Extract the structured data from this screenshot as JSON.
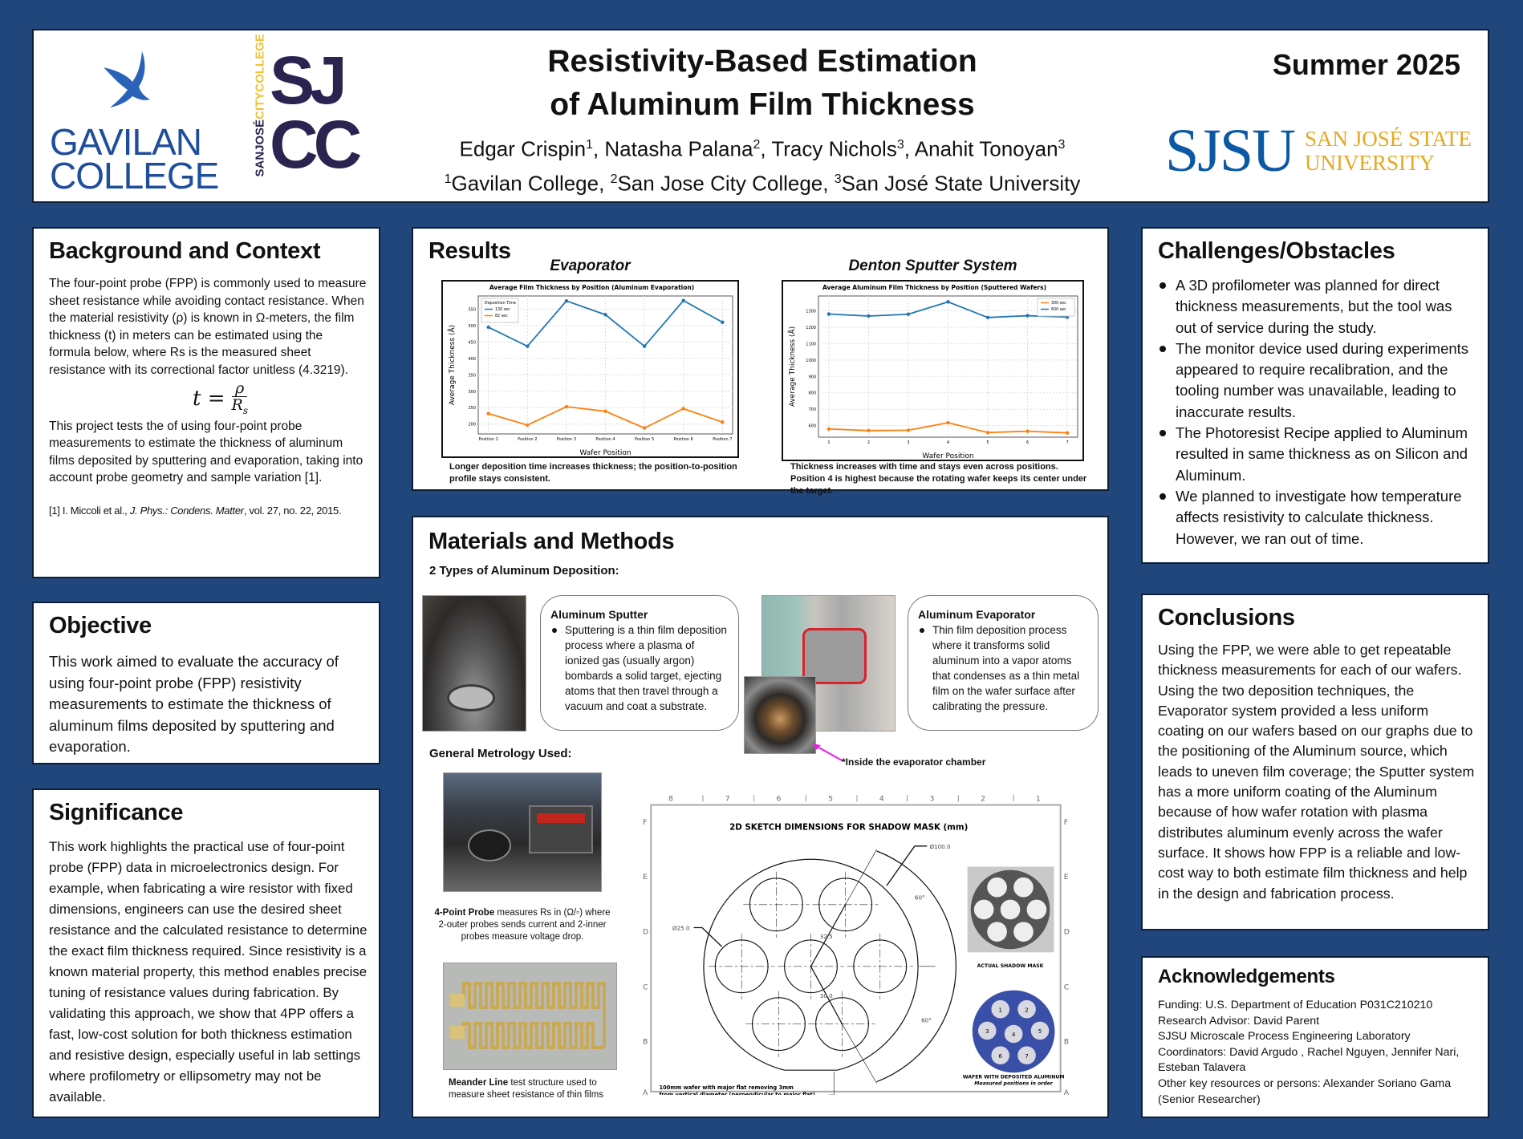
{
  "header": {
    "title_line1": "Resistivity-Based Estimation",
    "title_line2": "of Aluminum Film Thickness",
    "authors": [
      {
        "name": "Edgar Crispin",
        "sup": "1"
      },
      {
        "name": "Natasha Palana",
        "sup": "2"
      },
      {
        "name": "Tracy Nichols",
        "sup": "3"
      },
      {
        "name": "Anahit Tonoyan",
        "sup": "3"
      }
    ],
    "affiliations": [
      {
        "sup": "1",
        "name": "Gavilan College"
      },
      {
        "sup": "2",
        "name": "San Jose City College"
      },
      {
        "sup": "3",
        "name": "San José State University"
      }
    ],
    "date": "Summer 2025",
    "logos": {
      "gavilan_line1": "GAVILAN",
      "gavilan_line2": "COLLEGE",
      "sjcc_side1": "SANJOSÉ",
      "sjcc_side2": "CITYCOLLEGE",
      "sjcc_big1": "SJ",
      "sjcc_big2": "CC",
      "sjsu_mark": "SJSU",
      "sjsu_line1": "SAN JOSÉ STATE",
      "sjsu_line2": "UNIVERSITY"
    },
    "colors": {
      "background": "#21467b",
      "gavilan_blue": "#1f4e9c",
      "sjcc_purple": "#2b2350",
      "sjcc_gold": "#f2c230",
      "sjsu_blue": "#0b59a5",
      "sjsu_gold": "#e6a823"
    }
  },
  "background": {
    "heading": "Background and Context",
    "para1": "The four-point probe (FPP) is commonly used to measure sheet resistance while avoiding contact resistance. When the material resistivity (ρ) is known in Ω-meters, the film thickness (t) in meters can be estimated using the formula below, where Rs is the measured sheet resistance with its correctional factor unitless (4.3219).",
    "formula_lhs": "t =",
    "formula_num": "ρ",
    "formula_den": "R",
    "formula_den_sub": "s",
    "para2": "This project tests the of using four-point probe measurements to estimate the thickness of aluminum films deposited by sputtering and evaporation, taking into account probe geometry and sample variation [1].",
    "ref_prefix": "[1] I. Miccoli et al., ",
    "ref_journal": "J. Phys.: Condens. Matter",
    "ref_suffix": ", vol. 27, no. 22, 2015."
  },
  "objective": {
    "heading": "Objective",
    "text": "This work aimed to evaluate the accuracy of using four-point probe (FPP) resistivity measurements to estimate the thickness of aluminum films deposited by sputtering and evaporation."
  },
  "significance": {
    "heading": "Significance",
    "text": "This work highlights the practical use of four-point probe (FPP) data in microelectronics design. For example, when fabricating a wire resistor with fixed dimensions, engineers can use the desired sheet resistance and the calculated resistance to determine the exact film thickness required. Since resistivity is a known material property, this method enables precise tuning of resistance values during fabrication. By validating this approach, we show that 4PP offers a fast, low-cost solution for both thickness estimation and resistive design, especially useful in lab settings where profilometry or ellipsometry may not be available."
  },
  "results": {
    "heading": "Results",
    "evap_title": "Evaporator",
    "sputter_title": "Denton Sputter System",
    "evap_caption": "Longer deposition time increases thickness; the position-to-position profile stays consistent.",
    "sputter_caption": "Thickness increases with time and stays even across positions. Position 4 is highest because the rotating wafer keeps its center under the target."
  },
  "chart_data": [
    {
      "type": "line",
      "title": "Average Film Thickness by Position (Aluminum Evaporation)",
      "xlabel": "Wafer Position",
      "ylabel": "Average Thickness (Å)",
      "categories": [
        "Position 1",
        "Position 2",
        "Position 3",
        "Position 4",
        "Position 5",
        "Position 6",
        "Position 7"
      ],
      "ylim": [
        170,
        590
      ],
      "yticks": [
        200,
        250,
        300,
        350,
        400,
        450,
        500,
        550
      ],
      "grid": true,
      "legend_title": "Deposition Time",
      "legend_placement": "top-left",
      "series": [
        {
          "name": "130 sec",
          "color": "#1f77b4",
          "values": [
            495,
            437,
            575,
            533,
            437,
            576,
            510
          ]
        },
        {
          "name": "82 sec",
          "color": "#ff7f0e",
          "values": [
            232,
            197,
            253,
            239,
            188,
            247,
            206
          ]
        }
      ]
    },
    {
      "type": "line",
      "title": "Average Aluminum Film Thickness by Position (Sputtered Wafers)",
      "xlabel": "Wafer Position",
      "ylabel": "Average Thickness (Å)",
      "categories": [
        "1",
        "2",
        "3",
        "4",
        "5",
        "6",
        "7"
      ],
      "ylim": [
        530,
        1390
      ],
      "yticks": [
        600,
        700,
        800,
        900,
        1000,
        1100,
        1200,
        1300
      ],
      "grid": true,
      "legend_title": "",
      "legend_placement": "top-right",
      "series": [
        {
          "name": "300 sec",
          "color": "#ff7f0e",
          "values": [
            580,
            570,
            572,
            618,
            558,
            566,
            556
          ]
        },
        {
          "name": "600 sec",
          "color": "#1f77b4",
          "values": [
            1280,
            1268,
            1279,
            1354,
            1259,
            1270,
            1261
          ]
        }
      ]
    }
  ],
  "materials": {
    "heading": "Materials and Methods",
    "deposition_heading": "2 Types of Aluminum Deposition:",
    "sputter": {
      "title": "Aluminum Sputter",
      "text": "Sputtering is a thin film deposition process where a plasma of ionized gas (usually argon) bombards a solid target, ejecting atoms that then travel through a vacuum and coat a substrate."
    },
    "evaporator": {
      "title": "Aluminum Evaporator",
      "text": "Thin film deposition process where it transforms solid aluminum into a vapor atoms that condenses as a thin metal film on the wafer surface after calibrating the pressure."
    },
    "inside_note": "*Inside the evaporator chamber",
    "metrology_heading": "General Metrology Used:",
    "fpp_bold": "4-Point Probe",
    "fpp_text": " measures Rs in (Ω/▫) where 2-outer probes sends current and 2-inner probes measure voltage drop.",
    "meander_bold": "Meander Line",
    "meander_text": " test structure used to measure sheet resistance of thin films",
    "drawing": {
      "title": "2D SKETCH DIMENSIONS FOR SHADOW MASK (mm)",
      "col_labels": [
        "8",
        "7",
        "6",
        "5",
        "4",
        "3",
        "2",
        "1"
      ],
      "row_labels": [
        "F",
        "E",
        "D",
        "C",
        "B",
        "A"
      ],
      "dim_wafer": "Ø100.0",
      "dim_hole": "Ø25.0",
      "dim_r1": "32.5",
      "dim_r2": "30.0",
      "angle1": "60°",
      "angle2": "60°",
      "flat_note1": "100mm wafer with major flat removing 3mm",
      "flat_note2": "from vertical diameter (perpendicular to major flat)",
      "mask_label": "ACTUAL SHADOW MASK",
      "wafer_label1": "WAFER WITH DEPOSITED ALUMINUM",
      "wafer_label2": "Measured positions in order",
      "positions": [
        "1",
        "2",
        "3",
        "4",
        "5",
        "6",
        "7"
      ]
    }
  },
  "challenges": {
    "heading": "Challenges/Obstacles",
    "items": [
      "A 3D profilometer was planned for direct thickness measurements, but the tool was out of service during the study.",
      "The monitor device used during experiments appeared to require recalibration, and the tooling number was unavailable, leading to inaccurate results.",
      "The Photoresist Recipe applied to Aluminum resulted in same thickness as on Silicon and Aluminum.",
      "We planned to investigate how temperature affects resistivity to calculate thickness. However, we ran out of time."
    ]
  },
  "conclusions": {
    "heading": "Conclusions",
    "text": "Using the FPP, we were able to get repeatable thickness measurements for each of our wafers. Using the two deposition techniques, the Evaporator system provided a less uniform coating on our wafers based on our graphs due to the positioning of the Aluminum source, which leads to uneven film coverage; the Sputter system has a more uniform coating of the Aluminum because of how wafer rotation with plasma distributes aluminum evenly across the wafer surface. It shows how FPP is a reliable and low-cost way to both estimate film thickness and help in the design and fabrication process."
  },
  "acknowledgements": {
    "heading": "Acknowledgements",
    "lines": [
      "Funding:  U.S. Department of Education P031C210210",
      "Research Advisor:  David Parent",
      "SJSU Microscale Process Engineering Laboratory",
      "Coordinators: David Argudo , Rachel Nguyen, Jennifer Nari, Esteban Talavera",
      "Other key resources or persons: Alexander Soriano Gama (Senior Researcher)"
    ]
  }
}
